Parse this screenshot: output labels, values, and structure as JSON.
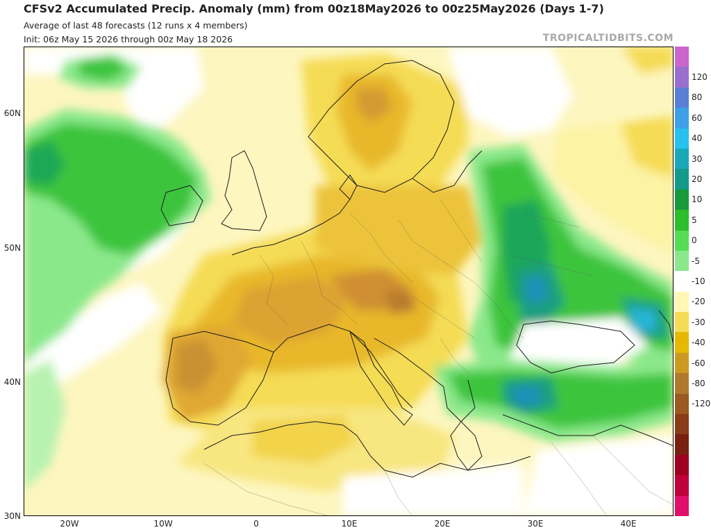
{
  "header": {
    "title": "CFSv2 Accumulated Precip. Anomaly (mm) from 00z18May2026 to 00z25May2026 (Days 1-7)",
    "subtitle1": "Average of last 48 forecasts (12 runs x 4 members)",
    "subtitle2": "Init: 06z May 15 2026 through 00z May 18 2026",
    "brand": "TROPICALTIDBITS.COM"
  },
  "axes": {
    "lat_labels": [
      "60N",
      "50N",
      "40N",
      "30N"
    ],
    "lon_labels": [
      "20W",
      "10W",
      "0",
      "10E",
      "20E",
      "30E",
      "40E"
    ]
  },
  "colorbar": {
    "labels": [
      "120",
      "80",
      "60",
      "40",
      "30",
      "20",
      "10",
      "5",
      "0",
      "-5",
      "-10",
      "-20",
      "-30",
      "-40",
      "-60",
      "-80",
      "-120"
    ],
    "colors": [
      "#cc66cc",
      "#9a6fd0",
      "#5a7fd6",
      "#3fa0e8",
      "#27c1f0",
      "#18a8b8",
      "#139a8a",
      "#189a3c",
      "#2bbf2b",
      "#55dd55",
      "#8ae88a",
      "#ffffff",
      "#fff7b3",
      "#f5dc55",
      "#e6b800",
      "#cc9a20",
      "#b07a2e",
      "#9a5a20",
      "#8a3c18",
      "#7a2010",
      "#a00020",
      "#c0003a",
      "#e0106a"
    ]
  },
  "colors": {
    "wet_green": "#39c439",
    "wet_blue": "#1f9fbf",
    "dry_yellow": "#f5e26a",
    "dry_orange": "#e2b22a",
    "dry_brown": "#c8902c"
  }
}
